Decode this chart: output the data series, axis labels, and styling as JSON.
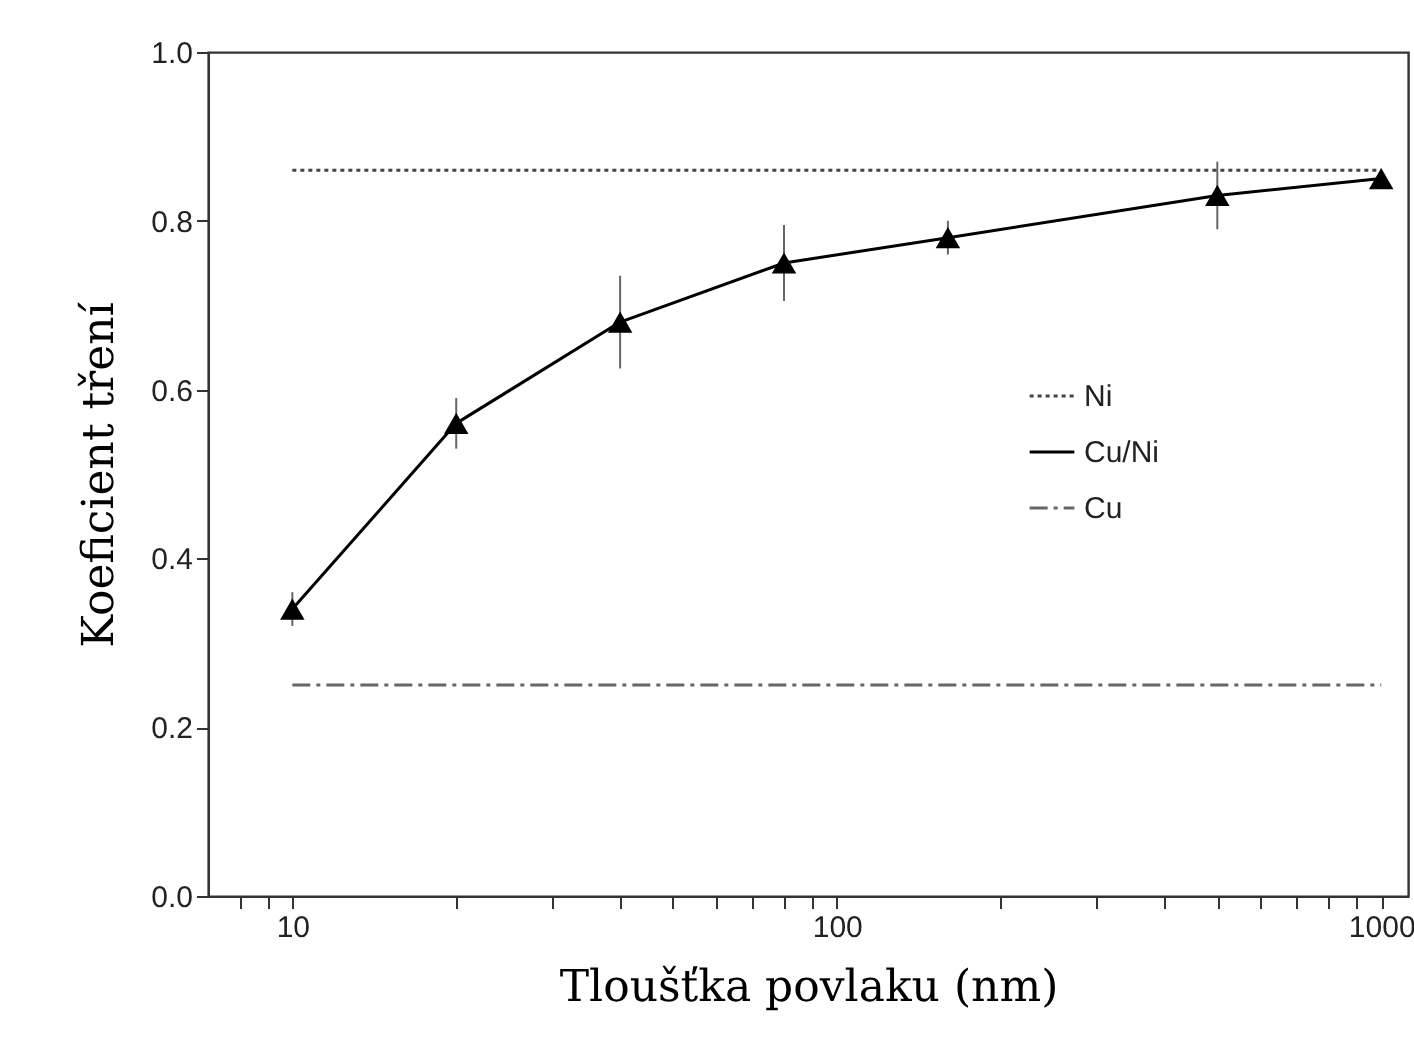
{
  "chart_data": {
    "type": "line",
    "xlabel": "Tloušťka povlaku (nm)",
    "ylabel": "Koeficient tření",
    "log": "x",
    "xlim": [
      7,
      1120
    ],
    "ylim": [
      0,
      1.0
    ],
    "xticks": [
      {
        "value": 8,
        "label": null
      },
      {
        "value": 9,
        "label": null
      },
      10,
      {
        "value": 20,
        "label": null
      },
      {
        "value": 30,
        "label": null
      },
      {
        "value": 40,
        "label": null
      },
      {
        "value": 50,
        "label": null
      },
      {
        "value": 60,
        "label": null
      },
      {
        "value": 70,
        "label": null
      },
      {
        "value": 80,
        "label": null
      },
      {
        "value": 90,
        "label": null
      },
      100,
      {
        "value": 200,
        "label": null
      },
      {
        "value": 300,
        "label": null
      },
      {
        "value": 400,
        "label": null
      },
      {
        "value": 500,
        "label": null
      },
      {
        "value": 600,
        "label": null
      },
      {
        "value": 700,
        "label": null
      },
      {
        "value": 800,
        "label": null
      },
      {
        "value": 900,
        "label": null
      },
      1000
    ],
    "yticks": [
      {
        "value": 0,
        "label": "0.0"
      },
      {
        "value": 0.2,
        "label": "0.2"
      },
      {
        "value": 0.4,
        "label": "0.4"
      },
      {
        "value": 0.6,
        "label": "0.6"
      },
      {
        "value": 0.8,
        "label": "0.8"
      },
      {
        "value": 1.0,
        "label": "1.0"
      }
    ],
    "grid": false,
    "legend": "right",
    "series": [
      {
        "name": "Ni",
        "color": "#444444",
        "line_style": "dotted",
        "marker": "none",
        "x": [
          10,
          1000
        ],
        "values": [
          0.86,
          0.86
        ]
      },
      {
        "name": "Cu/Ni",
        "color": "#000000",
        "line_style": "solid",
        "marker": "triangle",
        "x": [
          10,
          20,
          40,
          80,
          160,
          500,
          1000
        ],
        "values": [
          0.34,
          0.56,
          0.68,
          0.75,
          0.78,
          0.83,
          0.85
        ],
        "errors": [
          0.02,
          0.03,
          0.055,
          0.045,
          0.02,
          0.04,
          0.01
        ]
      },
      {
        "name": "Cu",
        "color": "#666666",
        "line_style": "dashed",
        "marker": "none",
        "x": [
          10,
          1000
        ],
        "values": [
          0.25,
          0.25
        ]
      }
    ]
  }
}
